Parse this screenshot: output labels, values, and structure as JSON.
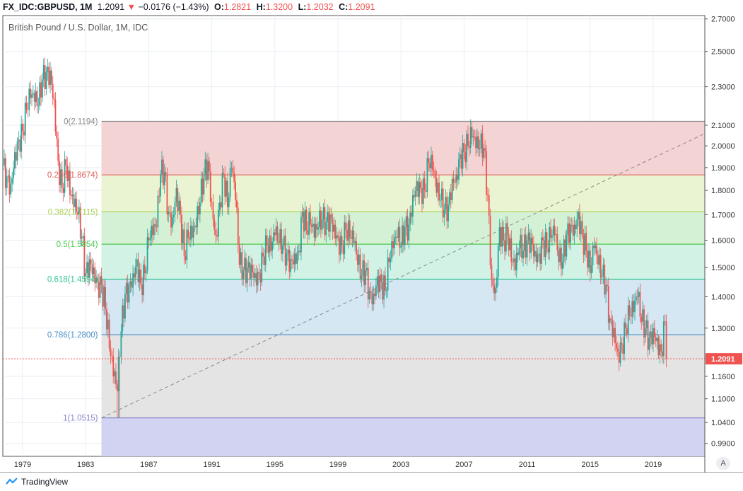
{
  "header": {
    "symbol": "FX_IDC:GBPUSD, 1M",
    "last": "1.2091",
    "change": "−0.0176 (−1.43%)",
    "o_label": "O:",
    "o": "1.2821",
    "h_label": "H:",
    "h": "1.3200",
    "l_label": "L:",
    "l": "1.2032",
    "c_label": "C:",
    "c": "1.2091"
  },
  "legend": "British Pound / U.S. Dollar, 1M, IDC",
  "footer": {
    "brand": "TradingView"
  },
  "scale_button": "A",
  "colors": {
    "up": "#26a69a",
    "down": "#ef5350",
    "price_line": "#ef5350"
  },
  "chart_data": {
    "type": "candlestick",
    "title": "British Pound / U.S. Dollar, 1M, IDC",
    "scale": "log",
    "ylim": [
      0.97,
      2.75
    ],
    "xlim": [
      1977.7,
      2022.3
    ],
    "y_ticks": [
      "2.7000",
      "2.5000",
      "2.3000",
      "2.1000",
      "2.0000",
      "1.9000",
      "1.8000",
      "1.7000",
      "1.6000",
      "1.5000",
      "1.4000",
      "1.3000",
      "1.1600",
      "1.1000",
      "1.0400",
      "0.9900"
    ],
    "x_ticks": [
      "1979",
      "1983",
      "1987",
      "1991",
      "1995",
      "1999",
      "2003",
      "2007",
      "2011",
      "2015",
      "2019"
    ],
    "last_price": "1.2091",
    "series_note": "approximate quarterly closes",
    "start": 1977.75,
    "step": 0.25,
    "closes": [
      1.91,
      1.86,
      1.83,
      1.97,
      2.03,
      2.07,
      2.18,
      2.24,
      2.22,
      2.2,
      2.34,
      2.38,
      2.39,
      2.23,
      1.93,
      1.81,
      1.91,
      1.78,
      1.73,
      1.7,
      1.61,
      1.48,
      1.53,
      1.5,
      1.45,
      1.44,
      1.36,
      1.24,
      1.16,
      1.12,
      1.29,
      1.41,
      1.44,
      1.48,
      1.53,
      1.44,
      1.48,
      1.6,
      1.62,
      1.65,
      1.87,
      1.88,
      1.71,
      1.69,
      1.81,
      1.7,
      1.54,
      1.61,
      1.61,
      1.65,
      1.75,
      1.87,
      1.93,
      1.75,
      1.62,
      1.75,
      1.87,
      1.73,
      1.9,
      1.76,
      1.51,
      1.49,
      1.5,
      1.51,
      1.48,
      1.48,
      1.54,
      1.58,
      1.56,
      1.62,
      1.59,
      1.58,
      1.55,
      1.53,
      1.55,
      1.56,
      1.71,
      1.64,
      1.66,
      1.61,
      1.65,
      1.68,
      1.67,
      1.7,
      1.66,
      1.61,
      1.58,
      1.64,
      1.61,
      1.59,
      1.51,
      1.47,
      1.49,
      1.42,
      1.41,
      1.47,
      1.45,
      1.42,
      1.52,
      1.57,
      1.61,
      1.58,
      1.65,
      1.66,
      1.78,
      1.84,
      1.81,
      1.8,
      1.92,
      1.89,
      1.79,
      1.76,
      1.72,
      1.74,
      1.85,
      1.87,
      1.96,
      1.97,
      2.0,
      2.04,
      1.99,
      1.99,
      1.99,
      1.78,
      1.46,
      1.43,
      1.65,
      1.6,
      1.62,
      1.52,
      1.49,
      1.57,
      1.56,
      1.6,
      1.61,
      1.56,
      1.55,
      1.6,
      1.57,
      1.61,
      1.62,
      1.52,
      1.52,
      1.62,
      1.66,
      1.66,
      1.71,
      1.62,
      1.56,
      1.48,
      1.57,
      1.51,
      1.47,
      1.44,
      1.33,
      1.3,
      1.23,
      1.25,
      1.3,
      1.34,
      1.35,
      1.4,
      1.32,
      1.3,
      1.27,
      1.3,
      1.27,
      1.23,
      1.32,
      1.2091
    ],
    "fibonacci": {
      "start_x": 1984.0,
      "levels": [
        {
          "ratio": "0",
          "price": 2.1194,
          "label": "0(2.1194)",
          "line": "#8a8a8a",
          "fill": "#f3d3d3"
        },
        {
          "ratio": "0.236",
          "price": 1.8674,
          "label": "0.236(1.8674)",
          "line": "#e06058",
          "fill": "#eaf4d3"
        },
        {
          "ratio": "0.382",
          "price": 1.7115,
          "label": "0.382(1.7115)",
          "line": "#a8d050",
          "fill": "#d5f1d5"
        },
        {
          "ratio": "0.5",
          "price": 1.5854,
          "label": "0.5(1.5854)",
          "line": "#4cc84c",
          "fill": "#d3f2e6"
        },
        {
          "ratio": "0.618",
          "price": 1.4594,
          "label": "0.618(1.4594)",
          "line": "#2cc48e",
          "fill": "#d4e7f3"
        },
        {
          "ratio": "0.786",
          "price": 1.28,
          "label": "0.786(1.2800)",
          "line": "#4a8fc6",
          "fill": "#e4e4e4"
        },
        {
          "ratio": "1",
          "price": 1.0515,
          "label": "1(1.0515)",
          "line": "#8884cc",
          "fill": "#d2d2f2"
        }
      ],
      "trend_line": [
        [
          1984.0,
          1.0515
        ],
        [
          2022.3,
          2.06
        ]
      ]
    }
  }
}
